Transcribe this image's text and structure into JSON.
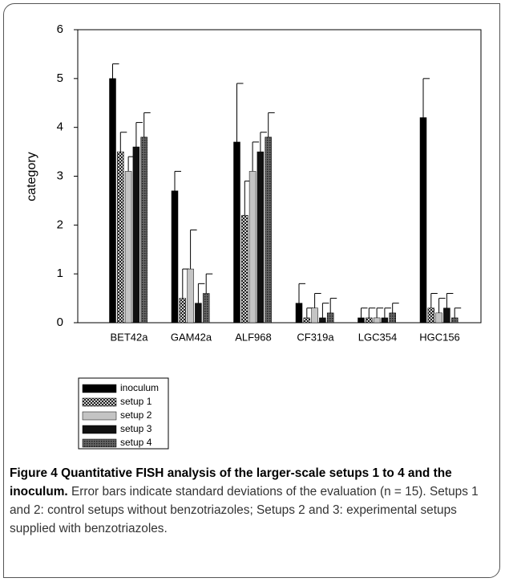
{
  "chart_data": {
    "type": "bar",
    "ylabel": "category",
    "categories": [
      "BET42a",
      "GAM42a",
      "ALF968",
      "CF319a",
      "LGC354",
      "HGC156"
    ],
    "ylim": [
      0,
      6
    ],
    "yticks": [
      0,
      1,
      2,
      3,
      4,
      5,
      6
    ],
    "series": [
      {
        "name": "inoculum",
        "color": "#000000",
        "values": [
          5.0,
          2.7,
          3.7,
          0.4,
          0.1,
          4.2
        ],
        "errors": [
          0.3,
          0.4,
          1.2,
          0.4,
          0.2,
          0.8
        ]
      },
      {
        "name": "setup 1",
        "color": "#ffffff",
        "pattern": "crosshatch",
        "values": [
          3.5,
          0.5,
          2.2,
          0.1,
          0.1,
          0.3
        ],
        "errors": [
          0.4,
          0.6,
          0.7,
          0.2,
          0.2,
          0.3
        ]
      },
      {
        "name": "setup 2",
        "color": "#c4c4c4",
        "values": [
          3.1,
          1.1,
          3.1,
          0.3,
          0.1,
          0.2
        ],
        "errors": [
          0.3,
          0.8,
          0.6,
          0.3,
          0.2,
          0.3
        ]
      },
      {
        "name": "setup 3",
        "color": "#111111",
        "values": [
          3.6,
          0.4,
          3.5,
          0.1,
          0.1,
          0.3
        ],
        "errors": [
          0.5,
          0.4,
          0.4,
          0.3,
          0.2,
          0.3
        ]
      },
      {
        "name": "setup 4",
        "color": "#6e6e6e",
        "pattern": "dots",
        "values": [
          3.8,
          0.6,
          3.8,
          0.2,
          0.2,
          0.1
        ],
        "errors": [
          0.5,
          0.4,
          0.5,
          0.3,
          0.2,
          0.2
        ]
      }
    ]
  },
  "caption": {
    "title": "Figure 4 Quantitative FISH analysis of the larger-scale setups 1 to 4 and the inoculum.",
    "body": "Error bars indicate standard deviations of the evaluation (n = 15). Setups 1 and 2: control setups without benzotriazoles; Setups 2 and 3: experimental setups supplied with benzotriazoles."
  }
}
